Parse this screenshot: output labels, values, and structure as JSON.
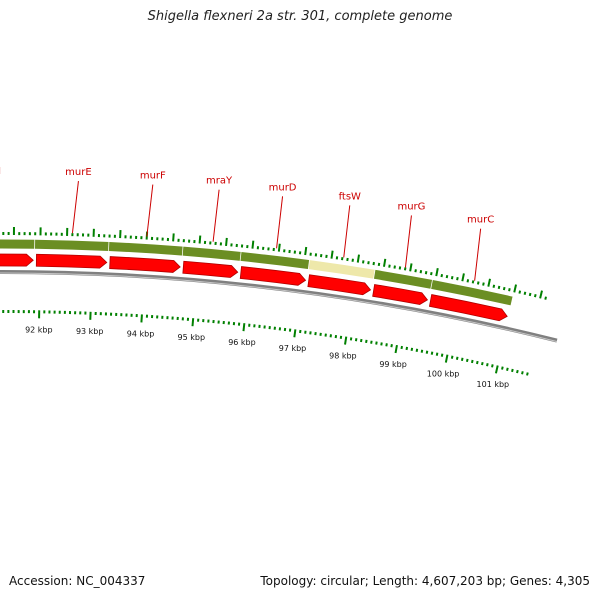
{
  "title": "Shigella flexneri 2a str. 301, complete genome",
  "accession": "Accession: NC_004337",
  "topology": "Topology: circular; Length: 4,607,203 bp; Genes: 4,305",
  "colors": {
    "gene_track": "#6b8e23",
    "gene_highlight": "#eee8aa",
    "cds": "#ff0000",
    "backbone": "#808080",
    "ticks": "#008000",
    "gene_label": "#cc0000"
  },
  "genes": [
    {
      "name": "ftsI",
      "start_kbp": 90.1,
      "end_kbp": 91.9
    },
    {
      "name": "murE",
      "start_kbp": 91.9,
      "end_kbp": 93.3
    },
    {
      "name": "murF",
      "start_kbp": 93.3,
      "end_kbp": 94.7
    },
    {
      "name": "mraY",
      "start_kbp": 94.7,
      "end_kbp": 95.8
    },
    {
      "name": "murD",
      "start_kbp": 95.8,
      "end_kbp": 97.1
    },
    {
      "name": "ftsW",
      "start_kbp": 97.1,
      "end_kbp": 98.35,
      "highlighted": true
    },
    {
      "name": "murG",
      "start_kbp": 98.35,
      "end_kbp": 99.45
    },
    {
      "name": "murC",
      "start_kbp": 99.45,
      "end_kbp": 101.0
    }
  ],
  "scale_labels": [
    "92 kbp",
    "93 kbp",
    "94 kbp",
    "95 kbp",
    "96 kbp",
    "97 kbp",
    "98 kbp",
    "99 kbp",
    "100 kbp",
    "101 kbp"
  ]
}
